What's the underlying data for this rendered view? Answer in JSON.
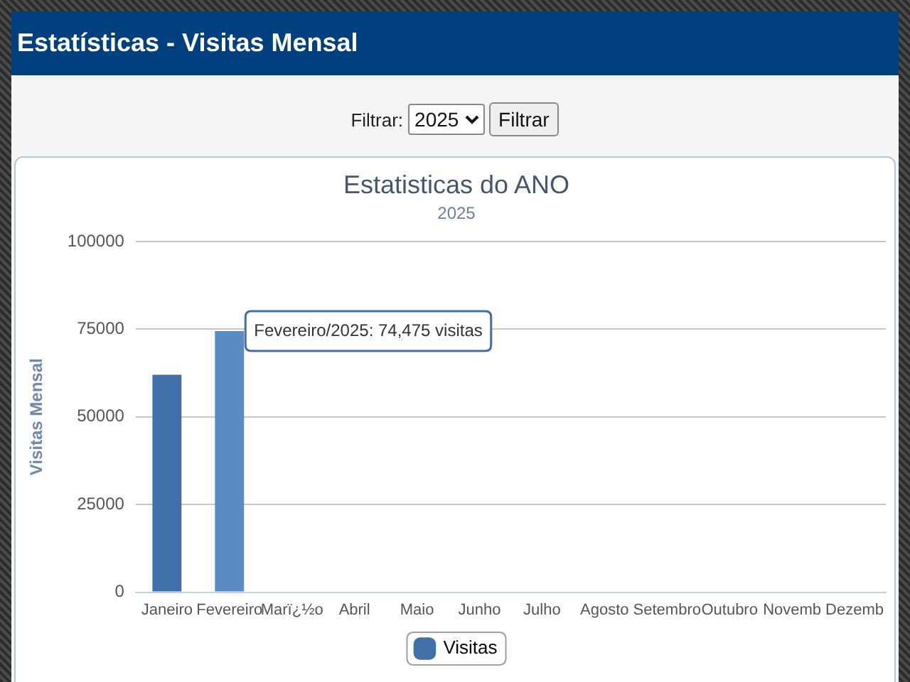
{
  "chart_data": {
    "type": "bar",
    "title": "Estatisticas do ANO",
    "subtitle": "2025",
    "ylabel": "Visitas Mensal",
    "categories": [
      "Janeiro",
      "Fevereiro",
      "Marï¿½o",
      "Abril",
      "Maio",
      "Junho",
      "Julho",
      "Agosto",
      "Setembro",
      "Outubro",
      "Novemb",
      "Dezemb"
    ],
    "series": [
      {
        "name": "Visitas",
        "color": "#4170a8",
        "colors": [
          "#4170a8",
          "#5b8bc4",
          "#4170a8",
          "#4170a8",
          "#4170a8",
          "#4170a8",
          "#4170a8",
          "#4170a8",
          "#4170a8",
          "#4170a8",
          "#4170a8",
          "#4170a8"
        ],
        "values": [
          62000,
          74475,
          0,
          0,
          0,
          0,
          0,
          0,
          0,
          0,
          0,
          0
        ]
      }
    ],
    "ylim": [
      0,
      100000
    ],
    "yticks": [
      0,
      25000,
      50000,
      75000,
      100000
    ],
    "grid": "y",
    "legend": "bottom",
    "annotations": [
      "Estatísticas - Visitas Mensal",
      "Filtrar:",
      "2025",
      "Filtrar",
      {
        "text": "Fevereiro/2025: 74,475 visitas",
        "x": "Fevereiro",
        "y": 74475
      }
    ]
  }
}
